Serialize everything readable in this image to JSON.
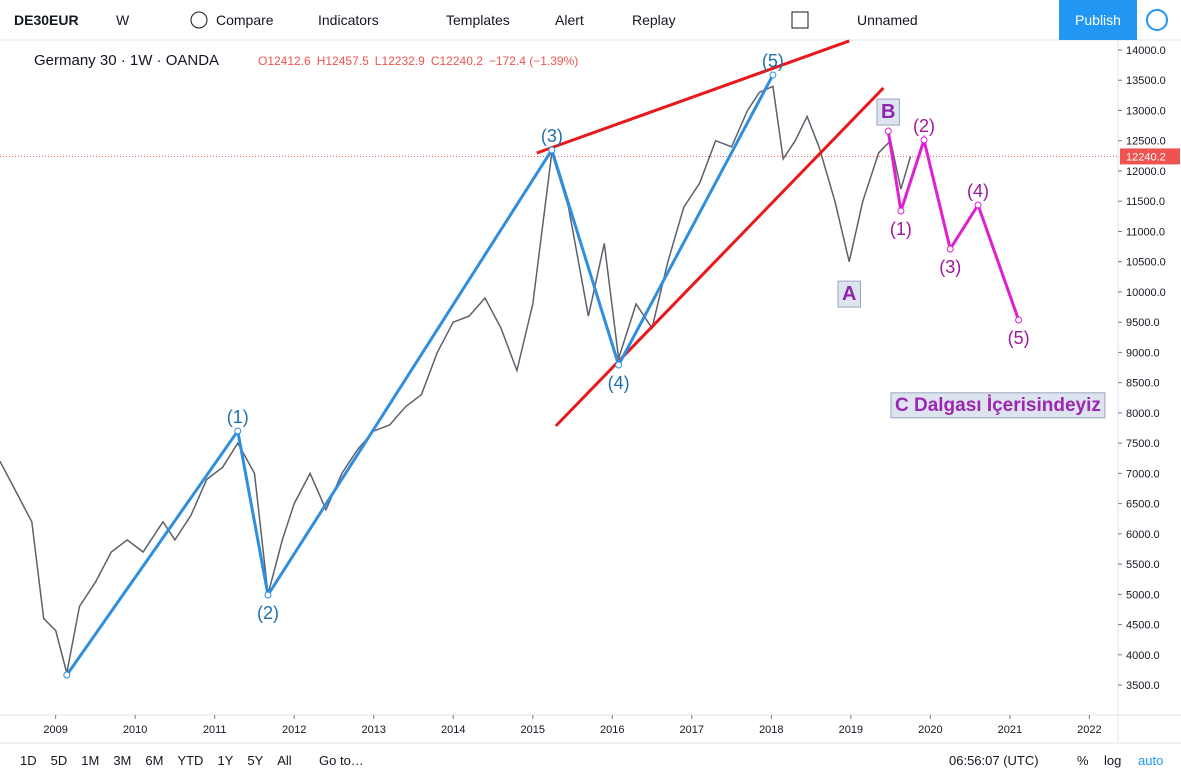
{
  "toolbar": {
    "symbol": "DE30EUR",
    "interval": "W",
    "items": [
      "Compare",
      "Indicators",
      "Templates",
      "Alert",
      "Replay"
    ],
    "layout": "Unnamed",
    "publish": "Publish"
  },
  "legend": {
    "title": "Germany 30 · 1W · OANDA",
    "ohlc": [
      "O12412.6",
      "H12457.5",
      "L12232.9",
      "C12240.2",
      "−172.4 (−1.39%)"
    ]
  },
  "chart_data": {
    "type": "line",
    "x": [
      2008.3,
      2008.5,
      2008.7,
      2008.85,
      2009.0,
      2009.14,
      2009.3,
      2009.5,
      2009.7,
      2009.9,
      2010.1,
      2010.35,
      2010.5,
      2010.7,
      2010.9,
      2011.1,
      2011.29,
      2011.5,
      2011.67,
      2011.85,
      2012.0,
      2012.2,
      2012.4,
      2012.6,
      2012.8,
      2013.0,
      2013.2,
      2013.4,
      2013.6,
      2013.8,
      2014.0,
      2014.2,
      2014.4,
      2014.6,
      2014.8,
      2015.0,
      2015.24,
      2015.45,
      2015.7,
      2015.9,
      2016.08,
      2016.3,
      2016.5,
      2016.7,
      2016.9,
      2017.1,
      2017.3,
      2017.5,
      2017.7,
      2017.85,
      2018.02,
      2018.15,
      2018.3,
      2018.45,
      2018.6,
      2018.8,
      2018.98,
      2019.15,
      2019.35,
      2019.5,
      2019.63,
      2019.75
    ],
    "values": [
      7200,
      6700,
      6200,
      4600,
      4400,
      3700,
      4800,
      5200,
      5700,
      5900,
      5700,
      6200,
      5900,
      6300,
      6900,
      7100,
      7500,
      7000,
      5000,
      5900,
      6500,
      7000,
      6400,
      7000,
      7400,
      7700,
      7800,
      8100,
      8300,
      9000,
      9500,
      9600,
      9900,
      9400,
      8700,
      9800,
      12300,
      11400,
      9600,
      10800,
      8900,
      9800,
      9400,
      10500,
      11400,
      11800,
      12500,
      12400,
      13000,
      13300,
      13400,
      12200,
      12500,
      12900,
      12400,
      11500,
      10500,
      11500,
      12300,
      12500,
      11700,
      12240.2
    ],
    "color": "#5d606b",
    "xlim": [
      2008.3,
      2022.36
    ],
    "ylim": [
      3005,
      14165
    ],
    "xticks": [
      2009,
      2010,
      2011,
      2012,
      2013,
      2014,
      2015,
      2016,
      2017,
      2018,
      2019,
      2020,
      2021,
      2022
    ],
    "yticks": [
      {
        "value": 3500,
        "label": "3500.0"
      },
      {
        "value": 4000,
        "label": "4000.0"
      },
      {
        "value": 4500,
        "label": "4500.0"
      },
      {
        "value": 5000,
        "label": "5000.0"
      },
      {
        "value": 5500,
        "label": "5500.0"
      },
      {
        "value": 6000,
        "label": "6000.0"
      },
      {
        "value": 6500,
        "label": "6500.0"
      },
      {
        "value": 7000,
        "label": "7000.0"
      },
      {
        "value": 7500,
        "label": "7500.0"
      },
      {
        "value": 8000,
        "label": "8000.0"
      },
      {
        "value": 8500,
        "label": "8500.0"
      },
      {
        "value": 9000,
        "label": "9000.0"
      },
      {
        "value": 9500,
        "label": "9500.0"
      },
      {
        "value": 10000,
        "label": "10000.0"
      },
      {
        "value": 10500,
        "label": "10500.0"
      },
      {
        "value": 11000,
        "label": "11000.0"
      },
      {
        "value": 11500,
        "label": "11500.0"
      },
      {
        "value": 12000,
        "label": "12000.0"
      },
      {
        "value": 12500,
        "label": "12500.0"
      },
      {
        "value": 13000,
        "label": "13000.0"
      },
      {
        "value": 13500,
        "label": "13500.0"
      },
      {
        "value": 14000,
        "label": "14000.0"
      }
    ],
    "last_price": 12240.2,
    "last_price_color": "#ef5350",
    "waves": [
      {
        "color": "#2f8fde",
        "x": [
          2009.14,
          2011.29,
          2011.67,
          2015.24,
          2016.08,
          2018.02
        ],
        "y": [
          3666,
          7700,
          4989,
          12347,
          8792,
          13587
        ],
        "labels": [
          null,
          "(1)",
          "(2)",
          "(3)",
          "(4)",
          "(5)"
        ]
      },
      {
        "color": "#e020d0",
        "x": [
          2019.47,
          2019.63,
          2019.92,
          2020.25,
          2020.6,
          2021.11
        ],
        "y": [
          12661,
          11338,
          12512,
          10710,
          11437,
          9536
        ],
        "labels": [
          null,
          "(1)",
          "(2)",
          "(3)",
          "(4)",
          "(5)"
        ],
        "label_color": "#a0169a"
      }
    ],
    "trend_lines": [
      {
        "color": "#e8191c",
        "x": [
          2015.05,
          2018.98
        ],
        "y": [
          12297,
          14149
        ]
      },
      {
        "color": "#e8191c",
        "x": [
          2015.29,
          2019.41
        ],
        "y": [
          7783,
          13372
        ]
      }
    ],
    "annotations": [
      {
        "text": "A",
        "x": 2018.98,
        "y": 9980,
        "color": "#8e24aa"
      },
      {
        "text": "B",
        "x": 2019.47,
        "y": 12990,
        "color": "#8e24aa"
      },
      {
        "text": "C Dalgası İçerisindeyiz",
        "x": 2020.85,
        "y": 8150,
        "color": "#9c27b0"
      }
    ]
  },
  "bottom_bar": {
    "ranges": [
      "1D",
      "5D",
      "1M",
      "3M",
      "6M",
      "YTD",
      "1Y",
      "5Y",
      "All"
    ],
    "goto": "Go to…",
    "clock": "06:56:07 (UTC)",
    "options": [
      "%",
      "log",
      "auto"
    ]
  }
}
